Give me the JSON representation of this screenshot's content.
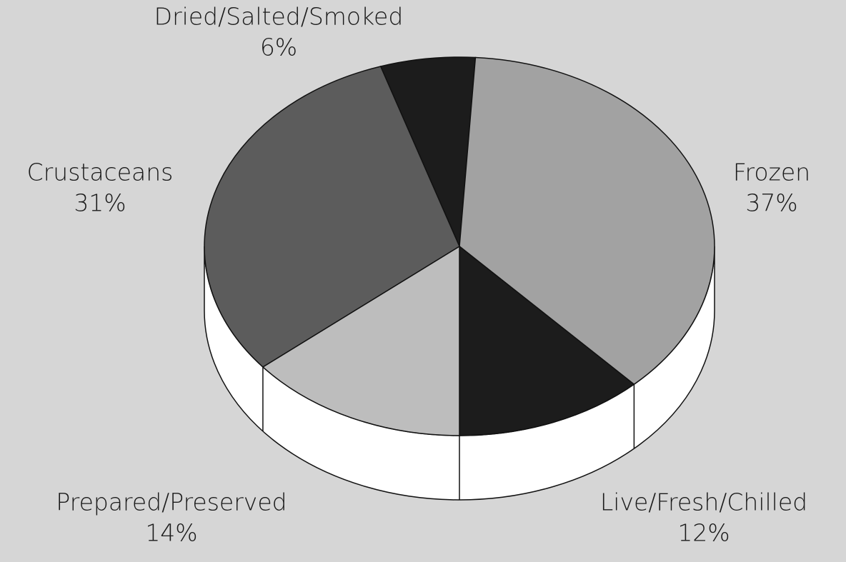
{
  "chart_data": {
    "type": "pie",
    "categories": [
      "Dried/Salted/Smoked",
      "Frozen",
      "Live/Fresh/Chilled",
      "Prepared/Preserved",
      "Crustaceans"
    ],
    "values": [
      6,
      37,
      12,
      14,
      31
    ],
    "value_labels": [
      "6%",
      "37%",
      "12%",
      "14%",
      "31%"
    ],
    "colors": [
      "#1c1c1c",
      "#a2a2a2",
      "#1c1c1c",
      "#bdbdbd",
      "#5c5c5c"
    ]
  }
}
